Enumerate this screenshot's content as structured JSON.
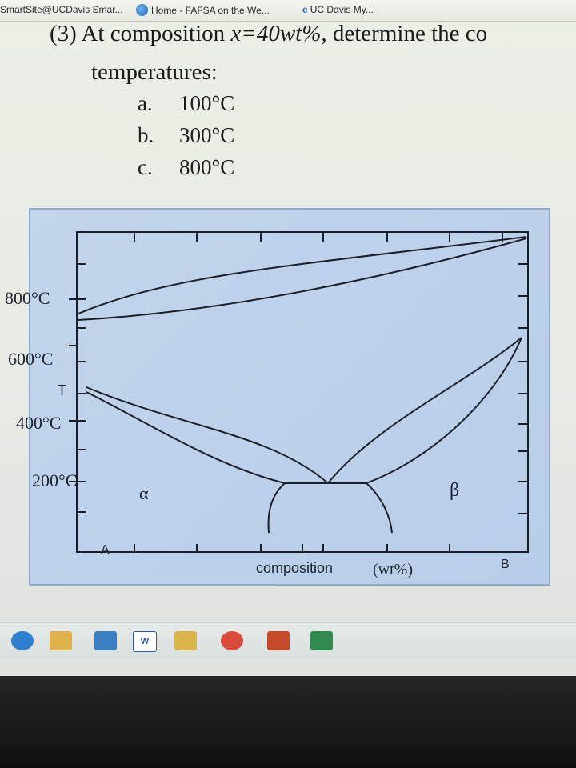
{
  "bookmarks": [
    {
      "label": "SmartSite@UCDavis Smar..."
    },
    {
      "label": "Home - FAFSA on the We..."
    },
    {
      "label": "UC Davis My..."
    }
  ],
  "question": {
    "number": "(3)",
    "prefix": "At composition ",
    "formula": "x=40wt%,",
    "suffix": " determine the co",
    "line2": "temperatures:",
    "answers": [
      {
        "letter": "a.",
        "value": "100°C"
      },
      {
        "letter": "b.",
        "value": "300°C"
      },
      {
        "letter": "c.",
        "value": "800°C"
      }
    ]
  },
  "diagram": {
    "y_tick_labels": [
      "800°C",
      "600°C",
      "400°C",
      "200°C"
    ],
    "t_label": "T",
    "phase_alpha": "α",
    "phase_beta": "β",
    "left_component": "A",
    "right_component": "B",
    "xlabel": "composition",
    "xlabel_unit": "(wt%)"
  },
  "taskbar": {
    "items": [
      {
        "icon": "internet-explorer-icon",
        "color": "#2e7fd0"
      },
      {
        "icon": "folder-icon",
        "color": "#e0b34a"
      },
      {
        "icon": "media-player-icon",
        "color": "#3a7fc0"
      },
      {
        "icon": "word-icon",
        "label": "W",
        "color": "#2b5aa8"
      },
      {
        "icon": "files-icon",
        "color": "#d9b449"
      },
      {
        "icon": "chrome-icon",
        "color": "#d94a3a"
      },
      {
        "icon": "powerpoint-icon",
        "color": "#c64a2a"
      },
      {
        "icon": "excel-icon",
        "color": "#2e8a4e"
      }
    ]
  }
}
